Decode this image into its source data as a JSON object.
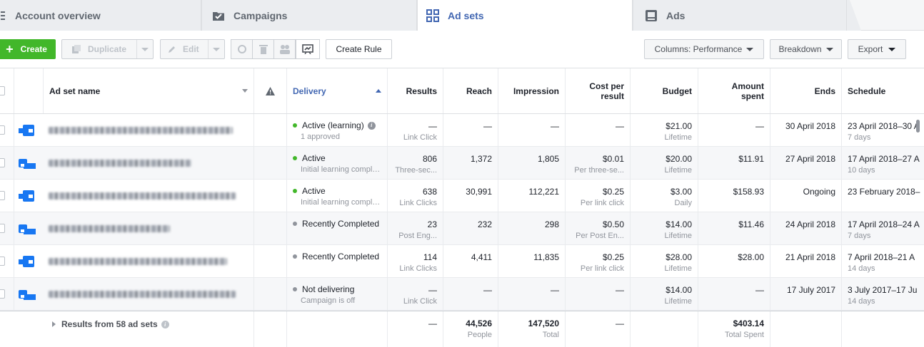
{
  "tabs": [
    {
      "label": "Account overview",
      "icon": "account-overview-icon"
    },
    {
      "label": "Campaigns",
      "icon": "campaigns-icon"
    },
    {
      "label": "Ad sets",
      "icon": "ad-sets-grid-icon",
      "active": true
    },
    {
      "label": "Ads",
      "icon": "ads-icon"
    }
  ],
  "toolbar": {
    "create": "Create",
    "duplicate": "Duplicate",
    "edit": "Edit",
    "create_rule": "Create Rule",
    "columns": "Columns: Performance",
    "breakdown": "Breakdown",
    "export": "Export"
  },
  "columns": {
    "name": "Ad set name",
    "delivery": "Delivery",
    "results": "Results",
    "reach": "Reach",
    "impression": "Impression",
    "cost_per_result": "Cost per result",
    "budget": "Budget",
    "amount_spent": "Amount spent",
    "ends": "Ends",
    "schedule": "Schedule"
  },
  "rows": [
    {
      "delivery": "Active (learning)",
      "delivery_sub": "1 approved",
      "status": "green",
      "info": true,
      "results": "—",
      "results_sub": "Link Click",
      "reach": "—",
      "impression": "—",
      "cpr": "—",
      "cpr_sub": "",
      "budget": "$21.00",
      "budget_sub": "Lifetime",
      "spent": "—",
      "ends": "30 April 2018",
      "schedule": "23 April 2018–30 A",
      "schedule_sub": "7 days"
    },
    {
      "delivery": "Active",
      "delivery_sub": "Initial learning complete",
      "status": "green",
      "results": "806",
      "results_sub": "Three-sec...",
      "reach": "1,372",
      "impression": "1,805",
      "cpr": "$0.01",
      "cpr_sub": "Per three-se...",
      "budget": "$20.00",
      "budget_sub": "Lifetime",
      "spent": "$11.91",
      "ends": "27 April 2018",
      "schedule": "17 April 2018–27 A",
      "schedule_sub": "10 days"
    },
    {
      "delivery": "Active",
      "delivery_sub": "Initial learning complete",
      "status": "green",
      "results": "638",
      "results_sub": "Link Clicks",
      "reach": "30,991",
      "impression": "112,221",
      "cpr": "$0.25",
      "cpr_sub": "Per link click",
      "budget": "$3.00",
      "budget_sub": "Daily",
      "spent": "$158.93",
      "ends": "Ongoing",
      "schedule": "23 February 2018–",
      "schedule_sub": ""
    },
    {
      "delivery": "Recently Completed",
      "delivery_sub": "",
      "status": "grey",
      "results": "23",
      "results_sub": "Post Eng...",
      "reach": "232",
      "impression": "298",
      "cpr": "$0.50",
      "cpr_sub": "Per Post En...",
      "budget": "$14.00",
      "budget_sub": "Lifetime",
      "spent": "$11.46",
      "ends": "24 April 2018",
      "schedule": "17 April 2018–24 A",
      "schedule_sub": "7 days"
    },
    {
      "delivery": "Recently Completed",
      "delivery_sub": "",
      "status": "grey",
      "results": "114",
      "results_sub": "Link Clicks",
      "reach": "4,411",
      "impression": "11,835",
      "cpr": "$0.25",
      "cpr_sub": "Per link click",
      "budget": "$28.00",
      "budget_sub": "Lifetime",
      "spent": "$28.00",
      "ends": "21 April 2018",
      "schedule": "7 April 2018–21 A",
      "schedule_sub": "14 days"
    },
    {
      "delivery": "Not delivering",
      "delivery_sub": "Campaign is off",
      "status": "grey",
      "results": "—",
      "results_sub": "Link Click",
      "reach": "—",
      "impression": "—",
      "cpr": "—",
      "cpr_sub": "",
      "budget": "$14.00",
      "budget_sub": "Lifetime",
      "spent": "—",
      "ends": "17 July 2017",
      "schedule": "3 July 2017–17 Ju",
      "schedule_sub": "14 days"
    }
  ],
  "footer": {
    "label": "Results from 58 ad sets",
    "results": "—",
    "reach": "44,526",
    "reach_sub": "People",
    "impression": "147,520",
    "impression_sub": "Total",
    "cpr": "—",
    "spent": "$403.14",
    "spent_sub": "Total Spent"
  },
  "colors": {
    "accent": "#4267b2",
    "create_green": "#42b72a",
    "active_dot": "#42b72a",
    "inactive_dot": "#90949c"
  }
}
